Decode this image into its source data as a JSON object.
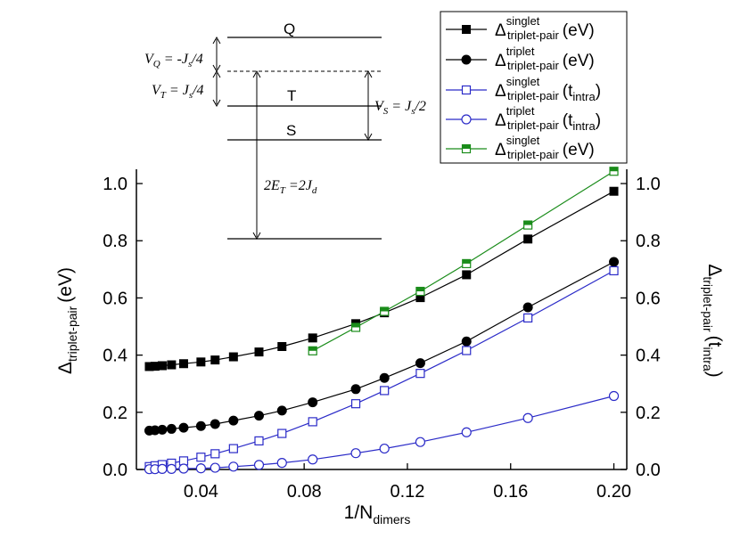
{
  "chart_data": {
    "type": "line",
    "xlabel": "1/N",
    "xlabel_sub": "dimers",
    "ylabel_left": "Δ",
    "ylabel_left_sub": "triplet-pair",
    "ylabel_left_unit": "(eV)",
    "ylabel_right": "Δ",
    "ylabel_right_sub": "triplet-pair",
    "ylabel_right_unit_open": "(t",
    "ylabel_right_unit_sub": "intra",
    "ylabel_right_unit_close": ")",
    "xlim": [
      0.015,
      0.205
    ],
    "ylim": [
      0.0,
      1.05
    ],
    "xticks": [
      {
        "v": 0.04,
        "label": "0.04"
      },
      {
        "v": 0.08,
        "label": "0.08"
      },
      {
        "v": 0.12,
        "label": "0.12"
      },
      {
        "v": 0.16,
        "label": "0.16"
      },
      {
        "v": 0.2,
        "label": "0.20"
      }
    ],
    "yticks": [
      {
        "v": 0.0,
        "label": "0.0"
      },
      {
        "v": 0.2,
        "label": "0.2"
      },
      {
        "v": 0.4,
        "label": "0.4"
      },
      {
        "v": 0.6,
        "label": "0.6"
      },
      {
        "v": 0.8,
        "label": "0.8"
      },
      {
        "v": 1.0,
        "label": "1.0"
      }
    ],
    "series": [
      {
        "name": "singlet-eV",
        "legend_sup": "singlet",
        "legend_sub": "triplet-pair",
        "legend_unit": "(eV)",
        "marker": "square-filled",
        "color": "#000000",
        "line_color": "#000000",
        "x": [
          0.02,
          0.0222,
          0.025,
          0.0286,
          0.0333,
          0.04,
          0.0455,
          0.0526,
          0.0625,
          0.0714,
          0.0833,
          0.1,
          0.1111,
          0.125,
          0.1429,
          0.1667,
          0.2
        ],
        "y": [
          0.36,
          0.361,
          0.363,
          0.366,
          0.37,
          0.376,
          0.383,
          0.394,
          0.411,
          0.43,
          0.46,
          0.51,
          0.548,
          0.601,
          0.681,
          0.806,
          0.973
        ]
      },
      {
        "name": "triplet-eV",
        "legend_sup": "triplet",
        "legend_sub": "triplet-pair",
        "legend_unit": "(eV)",
        "marker": "circle-filled",
        "color": "#000000",
        "line_color": "#000000",
        "x": [
          0.02,
          0.0222,
          0.025,
          0.0286,
          0.0333,
          0.04,
          0.0455,
          0.0526,
          0.0625,
          0.0714,
          0.0833,
          0.1,
          0.1111,
          0.125,
          0.1429,
          0.1667,
          0.2
        ],
        "y": [
          0.136,
          0.137,
          0.139,
          0.142,
          0.146,
          0.152,
          0.159,
          0.171,
          0.188,
          0.206,
          0.235,
          0.281,
          0.32,
          0.372,
          0.448,
          0.567,
          0.726
        ]
      },
      {
        "name": "singlet-tintra",
        "legend_sup": "singlet",
        "legend_sub": "triplet-pair",
        "legend_unit_open": "(t",
        "legend_unit_sub": "intra",
        "legend_unit_close": ")",
        "marker": "square-open",
        "color": "#2b2bc8",
        "line_color": "#2b2bc8",
        "x": [
          0.02,
          0.0222,
          0.025,
          0.0286,
          0.0333,
          0.04,
          0.0455,
          0.0526,
          0.0625,
          0.0714,
          0.0833,
          0.1,
          0.1111,
          0.125,
          0.1429,
          0.1667,
          0.2
        ],
        "y": [
          0.01,
          0.013,
          0.017,
          0.022,
          0.03,
          0.043,
          0.055,
          0.073,
          0.1,
          0.126,
          0.167,
          0.23,
          0.276,
          0.336,
          0.416,
          0.53,
          0.695
        ]
      },
      {
        "name": "triplet-tintra",
        "legend_sup": "triplet",
        "legend_sub": "triplet-pair",
        "legend_unit_open": "(t",
        "legend_unit_sub": "intra",
        "legend_unit_close": ")",
        "marker": "circle-open",
        "color": "#2b2bc8",
        "line_color": "#2b2bc8",
        "x": [
          0.02,
          0.0222,
          0.025,
          0.0286,
          0.0333,
          0.04,
          0.0455,
          0.0526,
          0.0625,
          0.0714,
          0.0833,
          0.1,
          0.1111,
          0.125,
          0.1429,
          0.1667,
          0.2
        ],
        "y": [
          0.001,
          0.001,
          0.002,
          0.002,
          0.003,
          0.004,
          0.006,
          0.01,
          0.016,
          0.023,
          0.035,
          0.057,
          0.073,
          0.096,
          0.13,
          0.18,
          0.257
        ]
      },
      {
        "name": "singlet-eV-green",
        "legend_sup": "singlet",
        "legend_sub": "triplet-pair",
        "legend_unit": "(eV)",
        "marker": "square-half",
        "color": "#1a8c1a",
        "line_color": "#1a8c1a",
        "x": [
          0.0833,
          0.1,
          0.1111,
          0.125,
          0.1429,
          0.1667,
          0.2
        ],
        "y": [
          0.415,
          0.497,
          0.553,
          0.623,
          0.72,
          0.855,
          1.043
        ]
      }
    ],
    "inset": {
      "levels": [
        {
          "label": "Q"
        },
        {
          "label": "T"
        },
        {
          "label": "S"
        }
      ],
      "vq": {
        "lhs": "V",
        "lhs_sub": "Q",
        "rhs": " = -J",
        "rhs_sub": "s",
        "rhs_tail": "/4"
      },
      "vt": {
        "lhs": "V",
        "lhs_sub": "T",
        "rhs": " = J",
        "rhs_sub": "s",
        "rhs_tail": "/4"
      },
      "vs": {
        "lhs": "V",
        "lhs_sub": "S",
        "rhs": " = J",
        "rhs_sub": "s",
        "rhs_tail": "/2"
      },
      "et": {
        "lhs": "2E",
        "lhs_sub": "T",
        "rhs": " =2J",
        "rhs_sub": "d"
      }
    }
  }
}
